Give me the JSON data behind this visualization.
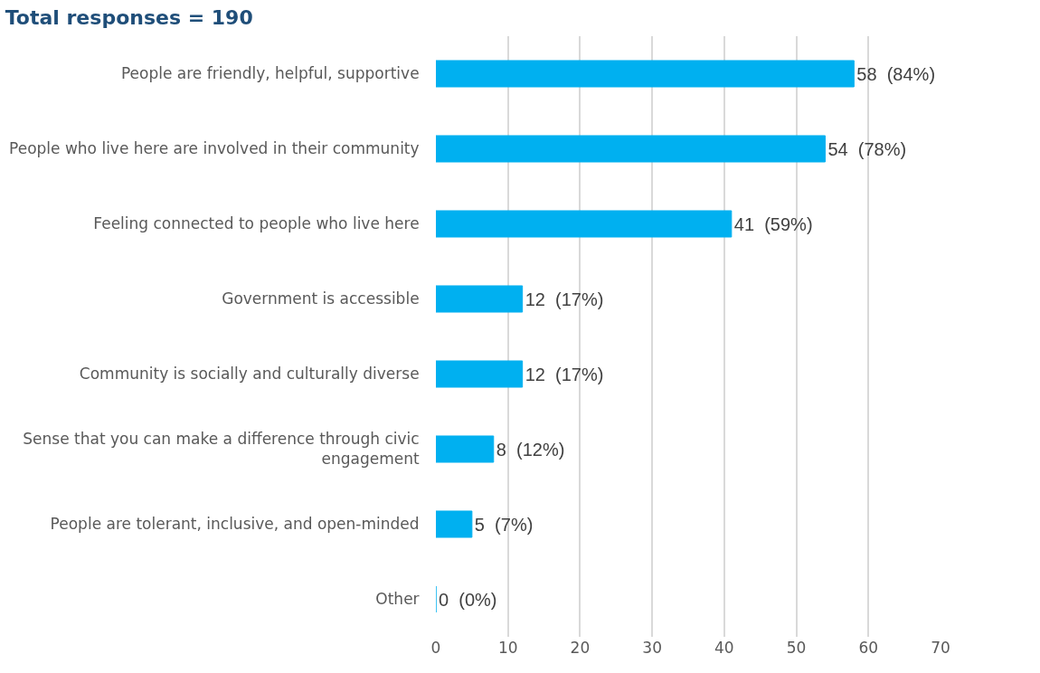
{
  "chart_data": {
    "type": "bar",
    "orientation": "horizontal",
    "title": "Total responses = 190",
    "categories": [
      "People are friendly, helpful, supportive",
      "People who live here are involved in their community",
      "Feeling connected to people who live here",
      "Government is accessible",
      "Community is socially and culturally diverse",
      "Sense that you can make a difference through civic engagement",
      "People are tolerant, inclusive, and open-minded",
      "Other"
    ],
    "values": [
      58,
      54,
      41,
      12,
      12,
      8,
      5,
      0
    ],
    "value_labels": [
      "58  (84%)",
      "54  (78%)",
      "41  (59%)",
      "12  (17%)",
      "12  (17%)",
      "8  (12%)",
      "5  (7%)",
      "0  (0%)"
    ],
    "color": "#00b0f0",
    "xlim": [
      0,
      70
    ],
    "xticks": [
      0,
      10,
      20,
      30,
      40,
      50,
      60,
      70
    ],
    "grid": "x",
    "legend": false
  }
}
